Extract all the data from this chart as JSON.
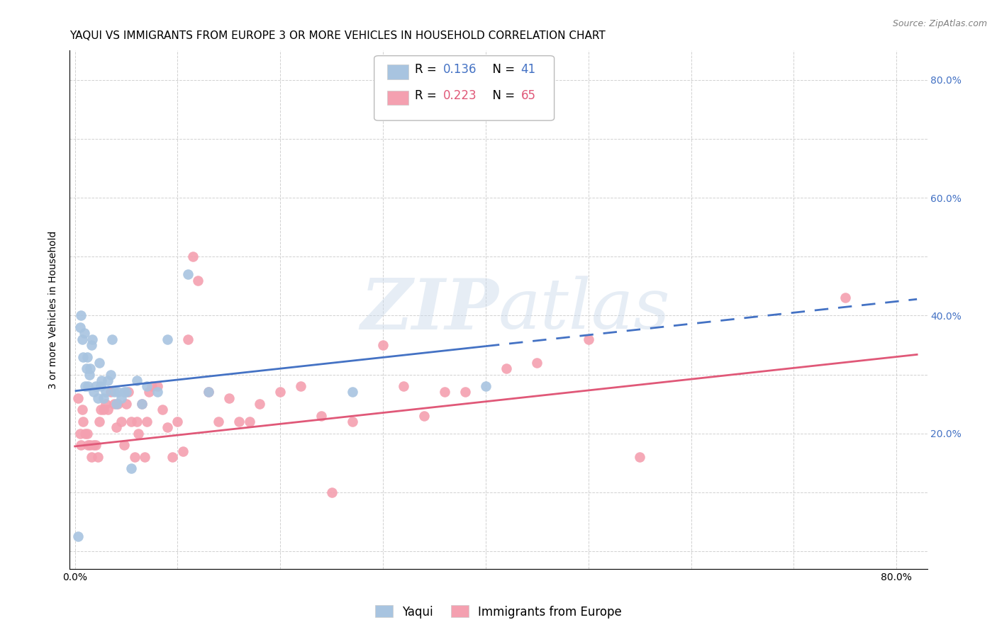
{
  "title": "YAQUI VS IMMIGRANTS FROM EUROPE 3 OR MORE VEHICLES IN HOUSEHOLD CORRELATION CHART",
  "source": "Source: ZipAtlas.com",
  "ylabel": "3 or more Vehicles in Household",
  "xlim": [
    -0.005,
    0.83
  ],
  "ylim": [
    -0.03,
    0.85
  ],
  "legend_label_blue": "Yaqui",
  "legend_label_pink": "Immigrants from Europe",
  "R_blue": 0.136,
  "N_blue": 41,
  "R_pink": 0.223,
  "N_pink": 65,
  "blue_color": "#a8c4e0",
  "pink_color": "#f4a0b0",
  "trend_blue_color": "#4472c4",
  "trend_pink_color": "#e05878",
  "grid_color": "#cccccc",
  "background_color": "#ffffff",
  "title_fontsize": 11,
  "axis_label_fontsize": 10,
  "tick_fontsize": 10,
  "right_axis_color": "#4472c4",
  "blue_scatter_x": [
    0.003,
    0.005,
    0.006,
    0.007,
    0.008,
    0.009,
    0.01,
    0.011,
    0.012,
    0.013,
    0.014,
    0.015,
    0.016,
    0.017,
    0.018,
    0.02,
    0.022,
    0.024,
    0.025,
    0.026,
    0.028,
    0.03,
    0.032,
    0.035,
    0.036,
    0.038,
    0.04,
    0.042,
    0.045,
    0.048,
    0.05,
    0.055,
    0.06,
    0.065,
    0.07,
    0.08,
    0.09,
    0.11,
    0.13,
    0.27,
    0.4
  ],
  "blue_scatter_y": [
    0.025,
    0.38,
    0.4,
    0.36,
    0.33,
    0.37,
    0.28,
    0.31,
    0.33,
    0.28,
    0.3,
    0.31,
    0.35,
    0.36,
    0.27,
    0.28,
    0.26,
    0.32,
    0.28,
    0.29,
    0.26,
    0.27,
    0.29,
    0.3,
    0.36,
    0.27,
    0.25,
    0.27,
    0.26,
    0.27,
    0.27,
    0.14,
    0.29,
    0.25,
    0.28,
    0.27,
    0.36,
    0.47,
    0.27,
    0.27,
    0.28
  ],
  "pink_scatter_x": [
    0.003,
    0.005,
    0.006,
    0.007,
    0.008,
    0.01,
    0.012,
    0.013,
    0.015,
    0.016,
    0.018,
    0.02,
    0.022,
    0.024,
    0.025,
    0.028,
    0.03,
    0.032,
    0.035,
    0.038,
    0.04,
    0.042,
    0.045,
    0.048,
    0.05,
    0.052,
    0.055,
    0.058,
    0.06,
    0.062,
    0.065,
    0.068,
    0.07,
    0.072,
    0.075,
    0.08,
    0.085,
    0.09,
    0.095,
    0.1,
    0.105,
    0.11,
    0.115,
    0.12,
    0.13,
    0.14,
    0.15,
    0.16,
    0.17,
    0.18,
    0.2,
    0.22,
    0.24,
    0.25,
    0.27,
    0.3,
    0.32,
    0.34,
    0.36,
    0.38,
    0.42,
    0.45,
    0.5,
    0.55,
    0.75
  ],
  "pink_scatter_y": [
    0.26,
    0.2,
    0.18,
    0.24,
    0.22,
    0.2,
    0.2,
    0.18,
    0.18,
    0.16,
    0.18,
    0.18,
    0.16,
    0.22,
    0.24,
    0.24,
    0.25,
    0.24,
    0.27,
    0.25,
    0.21,
    0.25,
    0.22,
    0.18,
    0.25,
    0.27,
    0.22,
    0.16,
    0.22,
    0.2,
    0.25,
    0.16,
    0.22,
    0.27,
    0.28,
    0.28,
    0.24,
    0.21,
    0.16,
    0.22,
    0.17,
    0.36,
    0.5,
    0.46,
    0.27,
    0.22,
    0.26,
    0.22,
    0.22,
    0.25,
    0.27,
    0.28,
    0.23,
    0.1,
    0.22,
    0.35,
    0.28,
    0.23,
    0.27,
    0.27,
    0.31,
    0.32,
    0.36,
    0.16,
    0.43
  ],
  "blue_trend_x0": 0.0,
  "blue_trend_x_solid_end": 0.4,
  "blue_trend_x_dash_end": 0.82,
  "blue_trend_y0": 0.272,
  "blue_trend_slope": 0.19,
  "pink_trend_x0": 0.0,
  "pink_trend_x_end": 0.82,
  "pink_trend_y0": 0.178,
  "pink_trend_slope": 0.19
}
